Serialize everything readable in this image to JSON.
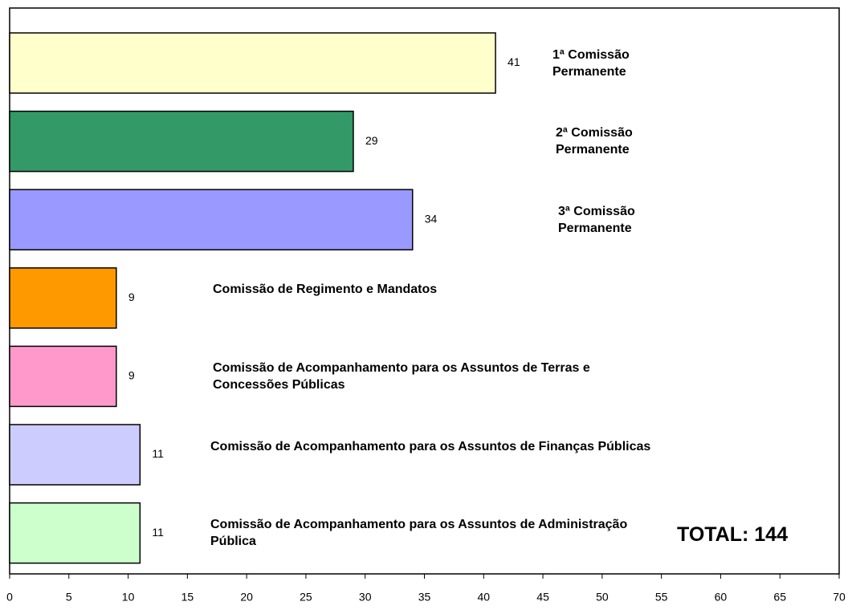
{
  "chart_data": {
    "type": "barh",
    "categories": [
      "1ª Comissão Permanente",
      "2ª Comissão Permanente",
      "3ª Comissão Permanente",
      "Comissão de Regimento e Mandatos",
      "Comissão de Acompanhamento para os Assuntos de Terras e Concessões Públicas",
      "Comissão de Acompanhamento para os Assuntos de Finanças Públicas",
      "Comissão de Acompanhamento para os Assuntos de Administração Pública"
    ],
    "values": [
      41,
      29,
      34,
      9,
      9,
      11,
      11
    ],
    "colors": [
      "#ffffcc",
      "#339966",
      "#9999ff",
      "#ff9900",
      "#ff99cc",
      "#ccccff",
      "#ccffcc"
    ],
    "xlim": [
      0,
      70
    ],
    "xticks": [
      0,
      5,
      10,
      15,
      20,
      25,
      30,
      35,
      40,
      45,
      50,
      55,
      60,
      65,
      70
    ],
    "grid": false,
    "annotation": "TOTAL: 144"
  }
}
